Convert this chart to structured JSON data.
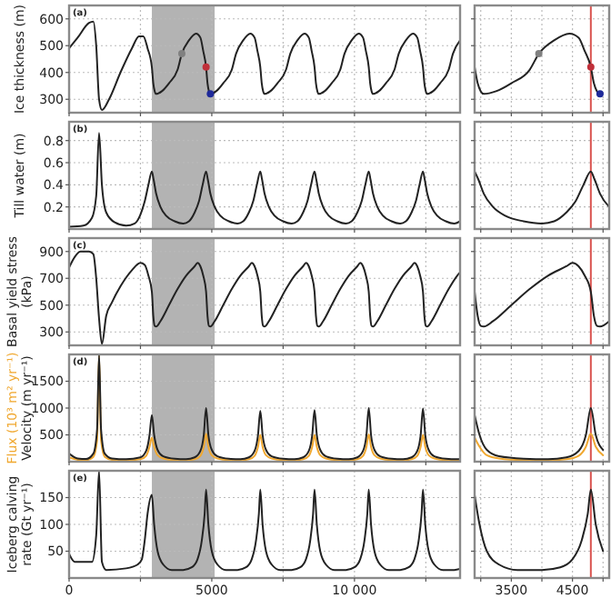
{
  "chart_data": [
    {
      "type": "line",
      "title": "(a)",
      "ylabel": "Ice thickness (m)",
      "xlim": [
        0,
        13700
      ],
      "ylim": [
        250,
        650
      ],
      "xticks": [
        0,
        {
          "value": 2500,
          "label": null
        },
        5000,
        {
          "value": 7500,
          "label": null
        },
        10000,
        {
          "value": 12500,
          "label": null
        }
      ],
      "yticks": [
        300,
        400,
        500,
        600
      ],
      "grid": true,
      "tick_labels": "y",
      "bands": [
        {
          "axis": "x",
          "from": 2900,
          "to": 5100,
          "color": "#a6a6a6"
        }
      ],
      "series": [
        {
          "type": "line",
          "color": "#222222",
          "x": [
            0,
            300,
            700,
            850,
            950,
            1050,
            1150,
            1400,
            1800,
            2200,
            2450,
            2600,
            2750,
            2900,
            2950,
            3000,
            3050,
            3250,
            3500,
            3800,
            3950,
            4200,
            4450,
            4600,
            4700,
            4800,
            4850,
            4900,
            4950,
            5150,
            5400,
            5700,
            5850,
            6100,
            6350,
            6500,
            6600,
            6700,
            6750,
            6800,
            6850,
            7050,
            7300,
            7600,
            7750,
            8000,
            8250,
            8400,
            8500,
            8600,
            8650,
            8700,
            8750,
            8950,
            9200,
            9500,
            9650,
            9900,
            10150,
            10300,
            10400,
            10500,
            10550,
            10600,
            10650,
            10850,
            11100,
            11400,
            11550,
            11800,
            12050,
            12200,
            12300,
            12400,
            12450,
            12500,
            12550,
            12750,
            13000,
            13300,
            13450,
            13700
          ],
          "values": [
            490,
            530,
            585,
            590,
            500,
            300,
            260,
            300,
            400,
            490,
            535,
            535,
            490,
            420,
            360,
            330,
            320,
            330,
            360,
            410,
            470,
            520,
            545,
            530,
            480,
            420,
            360,
            330,
            320,
            330,
            360,
            410,
            470,
            520,
            545,
            530,
            480,
            420,
            360,
            330,
            320,
            330,
            360,
            410,
            470,
            520,
            545,
            530,
            480,
            420,
            360,
            330,
            320,
            330,
            360,
            410,
            470,
            520,
            545,
            530,
            480,
            420,
            360,
            330,
            320,
            330,
            360,
            410,
            470,
            520,
            545,
            530,
            480,
            420,
            360,
            330,
            320,
            330,
            360,
            410,
            470,
            520
          ]
        },
        {
          "type": "scatter",
          "x": [
            3950,
            4800,
            4950
          ],
          "values": [
            470,
            420,
            320
          ],
          "colors": [
            "#808080",
            "#c0303a",
            "#1f2a9a"
          ]
        }
      ]
    },
    {
      "type": "line",
      "xlim": [
        2900,
        5100
      ],
      "ylim": [
        250,
        650
      ],
      "xticks": [
        {
          "value": 3000,
          "label": null
        },
        3500,
        {
          "value": 4000,
          "label": null
        },
        4500,
        {
          "value": 5000,
          "label": null
        }
      ],
      "yticks": [
        300,
        400,
        500,
        600
      ],
      "grid": true,
      "tick_labels": false,
      "ref_lines": [
        {
          "axis": "x",
          "value": 4800,
          "color": "#d9534f"
        }
      ],
      "series": [
        {
          "type": "line",
          "color": "#222222",
          "x": [
            2900,
            2950,
            3000,
            3050,
            3250,
            3500,
            3800,
            3950,
            4200,
            4450,
            4600,
            4700,
            4800,
            4850,
            4900,
            4950
          ],
          "values": [
            420,
            360,
            330,
            320,
            330,
            360,
            410,
            470,
            520,
            545,
            530,
            480,
            420,
            360,
            330,
            320
          ]
        },
        {
          "type": "scatter",
          "x": [
            3950,
            4800,
            4950
          ],
          "values": [
            470,
            420,
            320
          ],
          "colors": [
            "#808080",
            "#c0303a",
            "#1f2a9a"
          ]
        }
      ]
    },
    {
      "type": "line",
      "title": "(b)",
      "ylabel": "Till water (m)",
      "xlim": [
        0,
        13700
      ],
      "ylim": [
        0,
        0.97
      ],
      "xticks": [
        0,
        {
          "value": 2500,
          "label": null
        },
        5000,
        {
          "value": 7500,
          "label": null
        },
        10000,
        {
          "value": 12500,
          "label": null
        }
      ],
      "yticks": [
        0.2,
        0.4,
        0.6,
        0.8
      ],
      "grid": true,
      "tick_labels": "y",
      "bands": [
        {
          "axis": "x",
          "from": 2900,
          "to": 5100,
          "color": "#a6a6a6"
        }
      ],
      "series": [
        {
          "type": "line",
          "color": "#222222",
          "x": [
            0,
            500,
            800,
            950,
            1050,
            1150,
            1300,
            1600,
            2000,
            2300,
            2500,
            2650,
            2780,
            2900,
            2960,
            3050,
            3200,
            3400,
            3700,
            4000,
            4200,
            4400,
            4550,
            4680,
            4800,
            4860,
            4950,
            5100,
            5300,
            5600,
            5900,
            6100,
            6300,
            6450,
            6580,
            6700,
            6760,
            6850,
            7000,
            7200,
            7500,
            7800,
            8000,
            8200,
            8350,
            8480,
            8600,
            8660,
            8750,
            8900,
            9100,
            9400,
            9700,
            9900,
            10100,
            10250,
            10380,
            10500,
            10560,
            10650,
            10800,
            11000,
            11300,
            11600,
            11800,
            12000,
            12150,
            12280,
            12400,
            12460,
            12550,
            12700,
            12900,
            13200,
            13500,
            13700
          ],
          "values": [
            0.02,
            0.03,
            0.1,
            0.3,
            0.87,
            0.4,
            0.15,
            0.06,
            0.03,
            0.05,
            0.13,
            0.25,
            0.4,
            0.52,
            0.45,
            0.32,
            0.2,
            0.12,
            0.07,
            0.05,
            0.07,
            0.15,
            0.25,
            0.4,
            0.52,
            0.45,
            0.32,
            0.2,
            0.12,
            0.07,
            0.05,
            0.07,
            0.15,
            0.25,
            0.4,
            0.52,
            0.45,
            0.32,
            0.2,
            0.12,
            0.07,
            0.05,
            0.07,
            0.15,
            0.25,
            0.4,
            0.52,
            0.45,
            0.32,
            0.2,
            0.12,
            0.07,
            0.05,
            0.07,
            0.15,
            0.25,
            0.4,
            0.52,
            0.45,
            0.32,
            0.2,
            0.12,
            0.07,
            0.05,
            0.07,
            0.15,
            0.25,
            0.4,
            0.52,
            0.45,
            0.32,
            0.2,
            0.12,
            0.07,
            0.05,
            0.07
          ]
        }
      ]
    },
    {
      "type": "line",
      "xlim": [
        2900,
        5100
      ],
      "ylim": [
        0,
        0.97
      ],
      "xticks": [
        {
          "value": 3000,
          "label": null
        },
        3500,
        {
          "value": 4000,
          "label": null
        },
        4500,
        {
          "value": 5000,
          "label": null
        }
      ],
      "yticks": [
        0.2,
        0.4,
        0.6,
        0.8
      ],
      "grid": true,
      "tick_labels": false,
      "ref_lines": [
        {
          "axis": "x",
          "value": 4800,
          "color": "#d9534f"
        }
      ],
      "series": [
        {
          "type": "line",
          "color": "#222222",
          "x": [
            2900,
            2960,
            3050,
            3200,
            3400,
            3700,
            4000,
            4200,
            4400,
            4550,
            4680,
            4800,
            4860,
            4950,
            5100
          ],
          "values": [
            0.52,
            0.45,
            0.32,
            0.2,
            0.12,
            0.07,
            0.05,
            0.07,
            0.15,
            0.25,
            0.4,
            0.52,
            0.45,
            0.32,
            0.2
          ]
        }
      ]
    },
    {
      "type": "line",
      "title": "(c)",
      "ylabel": "Basal yield stress (kPa)",
      "xlim": [
        0,
        13700
      ],
      "ylim": [
        200,
        1000
      ],
      "xticks": [
        0,
        {
          "value": 2500,
          "label": null
        },
        5000,
        {
          "value": 7500,
          "label": null
        },
        10000,
        {
          "value": 12500,
          "label": null
        }
      ],
      "yticks": [
        300,
        500,
        700,
        900
      ],
      "grid": true,
      "tick_labels": "y",
      "bands": [
        {
          "axis": "x",
          "from": 2900,
          "to": 5100,
          "color": "#a6a6a6"
        }
      ],
      "series": [
        {
          "type": "line",
          "color": "#222222",
          "x": [
            0,
            200,
            400,
            700,
            850,
            950,
            1050,
            1150,
            1300,
            1500,
            1800,
            2200,
            2500,
            2650,
            2780,
            2900,
            2950,
            3000,
            3050,
            3200,
            3500,
            3800,
            4100,
            4400,
            4500,
            4600,
            4700,
            4800,
            4850,
            4900,
            4950,
            5100,
            5400,
            5700,
            6000,
            6300,
            6400,
            6500,
            6600,
            6700,
            6750,
            6800,
            6850,
            7000,
            7300,
            7600,
            7900,
            8200,
            8300,
            8400,
            8500,
            8600,
            8650,
            8700,
            8750,
            8900,
            9200,
            9500,
            9800,
            10100,
            10200,
            10300,
            10400,
            10500,
            10550,
            10600,
            10650,
            10800,
            11100,
            11400,
            11700,
            12000,
            12100,
            12200,
            12300,
            12400,
            12450,
            12500,
            12550,
            12700,
            13000,
            13300,
            13600,
            13700
          ],
          "values": [
            780,
            860,
            900,
            900,
            880,
            700,
            400,
            210,
            420,
            520,
            640,
            760,
            815,
            800,
            720,
            600,
            420,
            345,
            340,
            380,
            500,
            620,
            720,
            790,
            815,
            790,
            720,
            600,
            420,
            345,
            340,
            380,
            500,
            620,
            720,
            790,
            815,
            790,
            720,
            600,
            420,
            345,
            340,
            380,
            500,
            620,
            720,
            790,
            815,
            790,
            720,
            600,
            420,
            345,
            340,
            380,
            500,
            620,
            720,
            790,
            815,
            790,
            720,
            600,
            420,
            345,
            340,
            380,
            500,
            620,
            720,
            790,
            815,
            790,
            720,
            600,
            420,
            345,
            340,
            380,
            500,
            620,
            720,
            745
          ]
        }
      ]
    },
    {
      "type": "line",
      "xlim": [
        2900,
        5100
      ],
      "ylim": [
        200,
        1000
      ],
      "xticks": [
        {
          "value": 3000,
          "label": null
        },
        3500,
        {
          "value": 4000,
          "label": null
        },
        4500,
        {
          "value": 5000,
          "label": null
        }
      ],
      "yticks": [
        300,
        500,
        700,
        900
      ],
      "grid": true,
      "tick_labels": false,
      "ref_lines": [
        {
          "axis": "x",
          "value": 4800,
          "color": "#d9534f"
        }
      ],
      "series": [
        {
          "type": "line",
          "color": "#222222",
          "x": [
            2900,
            2950,
            3000,
            3050,
            3200,
            3500,
            3800,
            4100,
            4400,
            4500,
            4600,
            4700,
            4800,
            4850,
            4900,
            4950,
            5100
          ],
          "values": [
            600,
            420,
            345,
            340,
            380,
            500,
            620,
            720,
            790,
            815,
            790,
            720,
            600,
            420,
            345,
            340,
            380
          ]
        }
      ]
    },
    {
      "type": "line",
      "title": "(d)",
      "xlim": [
        0,
        13700
      ],
      "ylim": [
        0,
        2000
      ],
      "xticks": [
        0,
        {
          "value": 2500,
          "label": null
        },
        5000,
        {
          "value": 7500,
          "label": null
        },
        10000,
        {
          "value": 12500,
          "label": null
        }
      ],
      "yticks": [
        500,
        1000,
        1500
      ],
      "grid": true,
      "tick_labels": "y",
      "bands": [
        {
          "axis": "x",
          "from": 2900,
          "to": 5100,
          "color": "#a6a6a6"
        }
      ],
      "series": [
        {
          "type": "line",
          "name": "Flux (10³ m² yr⁻¹)",
          "color": "#f0a830",
          "x": [
            0,
            300,
            600,
            850,
            980,
            1050,
            1120,
            1250,
            1500,
            2000,
            2500,
            2700,
            2820,
            2900,
            2980,
            3100,
            3300,
            3700,
            4100,
            4400,
            4600,
            4720,
            4800,
            4880,
            5000,
            5200,
            5600,
            6000,
            6300,
            6500,
            6620,
            6700,
            6780,
            6900,
            7100,
            7500,
            7900,
            8200,
            8400,
            8520,
            8600,
            8680,
            8800,
            9000,
            9400,
            9800,
            10100,
            10300,
            10420,
            10500,
            10580,
            10700,
            10900,
            11300,
            11700,
            12000,
            12200,
            12320,
            12400,
            12480,
            12600,
            12800,
            13200,
            13600,
            13700
          ],
          "values": [
            80,
            35,
            30,
            90,
            400,
            2000,
            400,
            90,
            35,
            25,
            45,
            110,
            280,
            450,
            280,
            120,
            60,
            30,
            25,
            45,
            110,
            280,
            520,
            280,
            120,
            60,
            30,
            25,
            45,
            110,
            280,
            500,
            280,
            120,
            60,
            30,
            25,
            45,
            110,
            280,
            500,
            280,
            120,
            60,
            30,
            25,
            45,
            110,
            280,
            510,
            280,
            120,
            60,
            30,
            25,
            45,
            110,
            280,
            500,
            280,
            120,
            60,
            30,
            25,
            28
          ]
        },
        {
          "type": "line",
          "name": "Velocity (m yr⁻¹)",
          "color": "#222222",
          "x": [
            0,
            300,
            600,
            850,
            980,
            1050,
            1120,
            1250,
            1500,
            2000,
            2500,
            2700,
            2820,
            2900,
            2980,
            3100,
            3300,
            3700,
            4100,
            4400,
            4600,
            4720,
            4800,
            4880,
            5000,
            5200,
            5600,
            6000,
            6300,
            6500,
            6620,
            6700,
            6780,
            6900,
            7100,
            7500,
            7900,
            8200,
            8400,
            8520,
            8600,
            8680,
            8800,
            9000,
            9400,
            9800,
            10100,
            10300,
            10420,
            10500,
            10580,
            10700,
            10900,
            11300,
            11700,
            12000,
            12200,
            12320,
            12400,
            12480,
            12600,
            12800,
            13200,
            13600,
            13700
          ],
          "values": [
            150,
            60,
            50,
            150,
            600,
            2000,
            600,
            150,
            60,
            45,
            80,
            200,
            500,
            870,
            500,
            220,
            100,
            55,
            45,
            80,
            200,
            500,
            1000,
            500,
            220,
            100,
            55,
            45,
            80,
            200,
            500,
            950,
            500,
            220,
            100,
            55,
            45,
            80,
            200,
            500,
            960,
            500,
            220,
            100,
            55,
            45,
            80,
            200,
            500,
            1000,
            500,
            220,
            100,
            55,
            45,
            80,
            200,
            500,
            990,
            500,
            220,
            100,
            55,
            45,
            50
          ]
        }
      ]
    },
    {
      "type": "line",
      "xlim": [
        2900,
        5100
      ],
      "ylim": [
        0,
        2000
      ],
      "xticks": [
        {
          "value": 3000,
          "label": null
        },
        3500,
        {
          "value": 4000,
          "label": null
        },
        4500,
        {
          "value": 5000,
          "label": null
        }
      ],
      "yticks": [
        500,
        1000,
        1500
      ],
      "grid": true,
      "tick_labels": false,
      "ref_lines": [
        {
          "axis": "x",
          "value": 4800,
          "color": "#d9534f"
        }
      ],
      "series": [
        {
          "type": "line",
          "color": "#f0a830",
          "x": [
            2900,
            2980,
            3100,
            3300,
            3700,
            4100,
            4400,
            4600,
            4720,
            4800,
            4880,
            5000
          ],
          "values": [
            450,
            280,
            120,
            60,
            30,
            25,
            45,
            110,
            280,
            520,
            280,
            120
          ]
        },
        {
          "type": "line",
          "color": "#222222",
          "x": [
            2900,
            2980,
            3100,
            3300,
            3700,
            4100,
            4400,
            4600,
            4720,
            4800,
            4880,
            5000
          ],
          "values": [
            870,
            500,
            220,
            100,
            55,
            45,
            80,
            200,
            500,
            1000,
            500,
            220
          ]
        }
      ]
    },
    {
      "type": "line",
      "title": "(e)",
      "ylabel": "Iceberg calving rate (Gt yr⁻¹)",
      "xlim": [
        0,
        13700
      ],
      "ylim": [
        0,
        200
      ],
      "xticks": [
        0,
        {
          "value": 2500,
          "label": null
        },
        5000,
        {
          "value": 7500,
          "label": null
        },
        {
          "value": 10000,
          "label": "10 000"
        },
        {
          "value": 12500,
          "label": null
        }
      ],
      "yticks": [
        50,
        100,
        150
      ],
      "grid": true,
      "bands": [
        {
          "axis": "x",
          "from": 2900,
          "to": 5100,
          "color": "#a6a6a6"
        }
      ],
      "series": [
        {
          "type": "line",
          "color": "#222222",
          "x": [
            0,
            200,
            800,
            950,
            1050,
            1150,
            1300,
            2000,
            2400,
            2550,
            2650,
            2750,
            2900,
            2980,
            3100,
            3300,
            3600,
            4000,
            4300,
            4500,
            4650,
            4750,
            4800,
            4880,
            5000,
            5200,
            5500,
            5900,
            6200,
            6400,
            6550,
            6650,
            6700,
            6780,
            6900,
            7100,
            7400,
            7800,
            8100,
            8300,
            8450,
            8550,
            8600,
            8680,
            8800,
            9000,
            9300,
            9700,
            10000,
            10200,
            10350,
            10450,
            10500,
            10580,
            10700,
            10900,
            11200,
            11600,
            11900,
            12100,
            12250,
            12350,
            12400,
            12480,
            12600,
            12800,
            13100,
            13500,
            13700
          ],
          "values": [
            45,
            30,
            30,
            80,
            200,
            30,
            15,
            18,
            25,
            35,
            70,
            120,
            155,
            100,
            50,
            25,
            15,
            15,
            20,
            35,
            70,
            120,
            165,
            100,
            50,
            25,
            15,
            15,
            20,
            35,
            70,
            120,
            165,
            100,
            50,
            25,
            15,
            15,
            20,
            35,
            70,
            120,
            165,
            100,
            50,
            25,
            15,
            15,
            20,
            35,
            70,
            120,
            165,
            100,
            50,
            25,
            15,
            15,
            20,
            35,
            70,
            120,
            165,
            100,
            50,
            25,
            15,
            15,
            17
          ]
        }
      ]
    },
    {
      "type": "line",
      "xlim": [
        2900,
        5100
      ],
      "ylim": [
        0,
        200
      ],
      "xticks": [
        {
          "value": 3000,
          "label": null
        },
        3500,
        {
          "value": 4000,
          "label": null
        },
        4500,
        {
          "value": 5000,
          "label": null
        }
      ],
      "yticks": [
        50,
        100,
        150
      ],
      "grid": true,
      "tick_labels": "x",
      "ref_lines": [
        {
          "axis": "x",
          "value": 4800,
          "color": "#d9534f"
        }
      ],
      "series": [
        {
          "type": "line",
          "color": "#222222",
          "x": [
            2900,
            2980,
            3100,
            3300,
            3600,
            4000,
            4300,
            4500,
            4650,
            4750,
            4800,
            4880,
            5000
          ],
          "values": [
            155,
            100,
            50,
            25,
            15,
            15,
            20,
            35,
            70,
            120,
            165,
            100,
            50
          ]
        }
      ]
    }
  ]
}
